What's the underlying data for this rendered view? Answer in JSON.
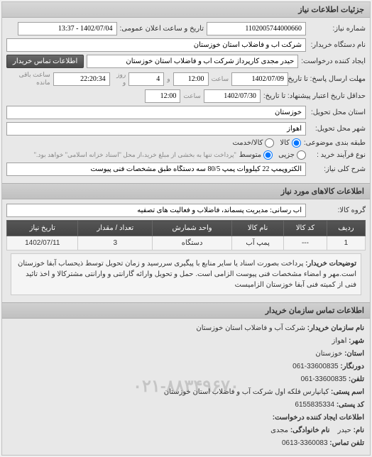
{
  "panel_title": "جزئیات اطلاعات نیاز",
  "form": {
    "req_num_label": "شماره نیاز:",
    "req_num": "1102005744000660",
    "announce_label": "تاریخ و ساعت اعلان عمومی:",
    "announce_value": "1402/07/04 - 13:37",
    "buyer_dev_label": "نام دستگاه خریدار:",
    "buyer_dev": "شرکت آب و فاضلاب استان خوزستان",
    "requester_label": "ایجاد کننده درخواست:",
    "requester": "حیدر مجدی کارپرداز شرکت آب و فاضلاب استان خوزستان",
    "contact_btn": "اطلاعات تماس خریدار",
    "deadline_label": "مهلت ارسال پاسخ: تا تاریخ:",
    "deadline_date": "1402/07/09",
    "time_label": "ساعت",
    "deadline_time": "12:00",
    "and_label": "و",
    "days": "4",
    "day_label": "روز و",
    "remain_time": "22:20:34",
    "remain_label": "ساعت باقی مانده",
    "validity_label": "حداقل تاریخ اعتبار پیشنهاد: تا تاریخ:",
    "validity_date": "1402/07/30",
    "validity_time": "12:00",
    "delivery_state_label": "استان محل تحویل:",
    "delivery_state": "خوزستان",
    "delivery_city_label": "شهر محل تحویل:",
    "delivery_city": "اهواز",
    "subject_class_label": "طبقه بندی موضوعی:",
    "radio_all": "کالا",
    "radio_service": "کالا/خدمت",
    "radio_sub": "جزیی",
    "radio_med": "متوسط",
    "purchase_proc_label": "نوع فرآیند خرید :",
    "purchase_note": "\"پرداخت تنها به بخشی از مبلغ خرید،از محل \"اسناد خزانه اسلامی\" خواهد بود.\"",
    "need_desc_label": "شرح کلی نیاز:",
    "need_desc": "الکتروپمپ 22 کیلووات پمپ 80/5 سه دستگاه طبق مشخصات فنی پیوست",
    "goods_info_title": "اطلاعات کالاهای مورد نیاز",
    "goods_group_label": "گروه کالا:",
    "goods_group": "آب رسانی: مدیریت پسماند، فاضلاب و فعالیت های تصفیه",
    "table": {
      "headers": [
        "ردیف",
        "کد کالا",
        "نام کالا",
        "واحد شمارش",
        "تعداد / مقدار",
        "تاریخ نیاز"
      ],
      "rows": [
        [
          "1",
          "---",
          "پمپ آب",
          "دستگاه",
          "3",
          "1402/07/11"
        ]
      ]
    },
    "notes_label": "توضیحات خریدار:",
    "notes": "پرداخت بصورت اسناد یا سایر منابع با پیگیری سررسید و زمان تحویل توسط ذیحساب آبفا خوزستان است.مهر و امضاء مشخصات فنی پیوست الزامی است. حمل و تحویل وارائه گارانتی و وارانتی مشترکالا و اخذ تائید فنی از کمیته فنی آبفا خوزستان الزامیست"
  },
  "contact": {
    "section_title": "اطلاعات تماس سازمان خریدار",
    "org_label": "نام سازمان خریدار:",
    "org": "شرکت آب و فاضلاب استان خوزستان",
    "city_label": "شهر:",
    "city": "اهواز",
    "province_label": "استان:",
    "province": "خوزستان",
    "fax_label": "دورنگار:",
    "fax": "33600835-061",
    "phone_label": "تلفن:",
    "phone": "33600835-061",
    "address_label": "اسم پستی:",
    "address": "کیانپارس فلکه اول شرکت آب و فاضلاب استان خوزستان",
    "postal_label": "کد پستی:",
    "postal": "6155835334",
    "req_creator_title": "اطلاعات ایجاد کننده درخواست:",
    "name_label": "نام:",
    "name": "حیدر",
    "family_label": "نام خانوادگی:",
    "family": "مجدی",
    "contact_phone_label": "تلفن تماس:",
    "contact_phone": "3360083-0613",
    "watermark": "۰۲۱-۸۸۳۴۹۶۷۰"
  }
}
